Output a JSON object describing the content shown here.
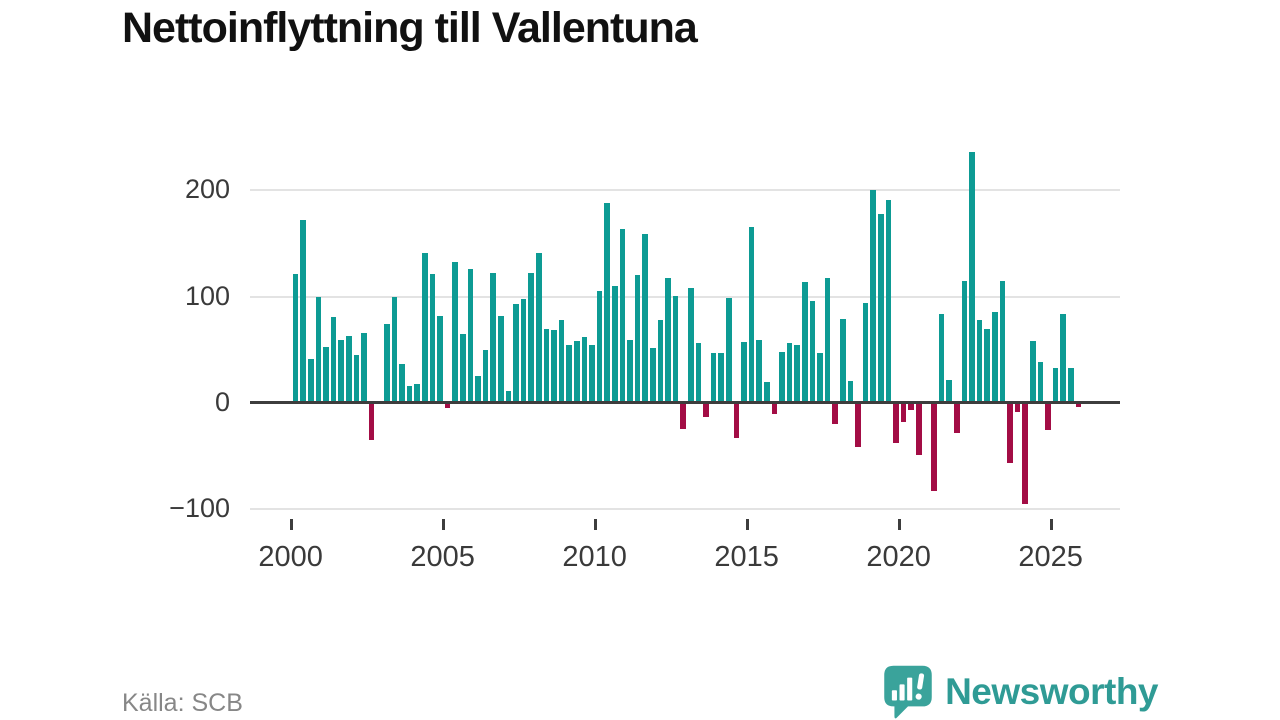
{
  "title": "Nettoinflyttning till Vallentuna",
  "source": "Källa: SCB",
  "logo": {
    "text": "Newsworthy"
  },
  "colors": {
    "positive": "#0d9b94",
    "negative": "#a30d45",
    "zero_line": "#3d3d3d",
    "gridline": "#e3e3e3",
    "title_text": "#111111",
    "tick_text": "#3a3a3a",
    "source_text": "#878787",
    "logo_teal": "#2f9b95"
  },
  "chart_data": {
    "type": "bar",
    "title": "Nettoinflyttning till Vallentuna",
    "frequency": "quarterly",
    "start_year": 2000,
    "end_year": 2025,
    "grid": "horizontal",
    "legend": "none",
    "ylim": [
      -120,
      250
    ],
    "y_ticks": [
      {
        "label": "200",
        "value": 200
      },
      {
        "label": "100",
        "value": 100
      },
      {
        "label": "0",
        "value": 0
      },
      {
        "label": "−100",
        "value": -100
      }
    ],
    "x_ticks": [
      2000,
      2005,
      2010,
      2015,
      2020,
      2025
    ],
    "values": [
      121,
      172,
      41,
      100,
      53,
      81,
      59,
      63,
      45,
      66,
      -35,
      0,
      74,
      100,
      37,
      16,
      18,
      141,
      121,
      82,
      -5,
      133,
      65,
      126,
      25,
      50,
      122,
      82,
      11,
      93,
      98,
      122,
      141,
      70,
      69,
      78,
      55,
      58,
      62,
      55,
      105,
      188,
      110,
      164,
      59,
      120,
      159,
      52,
      78,
      118,
      101,
      -24,
      108,
      56,
      -13,
      47,
      47,
      99,
      -33,
      57,
      166,
      59,
      20,
      -10,
      48,
      56,
      55,
      114,
      96,
      47,
      118,
      -20,
      79,
      21,
      -41,
      94,
      200,
      178,
      191,
      -38,
      -18,
      -7,
      -49,
      0,
      -83,
      84,
      22,
      -28,
      115,
      236,
      78,
      70,
      86,
      115,
      -56,
      -8,
      -95,
      58,
      39,
      -25,
      33,
      84,
      33,
      -4
    ]
  }
}
